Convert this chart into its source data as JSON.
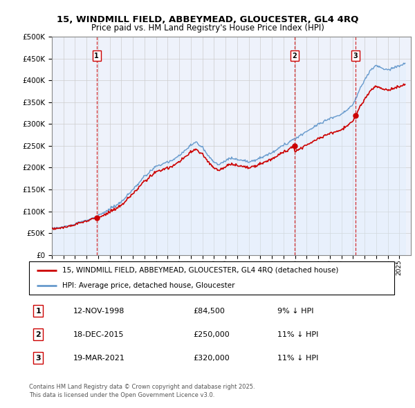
{
  "title_line1": "15, WINDMILL FIELD, ABBEYMEAD, GLOUCESTER, GL4 4RQ",
  "title_line2": "Price paid vs. HM Land Registry's House Price Index (HPI)",
  "ytick_values": [
    0,
    50000,
    100000,
    150000,
    200000,
    250000,
    300000,
    350000,
    400000,
    450000,
    500000
  ],
  "xmin": 1995.0,
  "xmax": 2026.0,
  "ymin": 0,
  "ymax": 500000,
  "sale_dates": [
    1998.87,
    2015.96,
    2021.22
  ],
  "sale_prices": [
    84500,
    250000,
    320000
  ],
  "sale_labels": [
    "1",
    "2",
    "3"
  ],
  "sale_date_strings": [
    "12-NOV-1998",
    "18-DEC-2015",
    "19-MAR-2021"
  ],
  "sale_price_strings": [
    "£84,500",
    "£250,000",
    "£320,000"
  ],
  "sale_pct_strings": [
    "9% ↓ HPI",
    "11% ↓ HPI",
    "11% ↓ HPI"
  ],
  "legend_line1": "15, WINDMILL FIELD, ABBEYMEAD, GLOUCESTER, GL4 4RQ (detached house)",
  "legend_line2": "HPI: Average price, detached house, Gloucester",
  "footer_line1": "Contains HM Land Registry data © Crown copyright and database right 2025.",
  "footer_line2": "This data is licensed under the Open Government Licence v3.0.",
  "line_color_red": "#cc0000",
  "line_color_blue": "#6699cc",
  "fill_color_blue": "#ddeeff",
  "bg_color": "#eef2fb",
  "grid_color": "#cccccc",
  "dashed_color": "#cc0000"
}
